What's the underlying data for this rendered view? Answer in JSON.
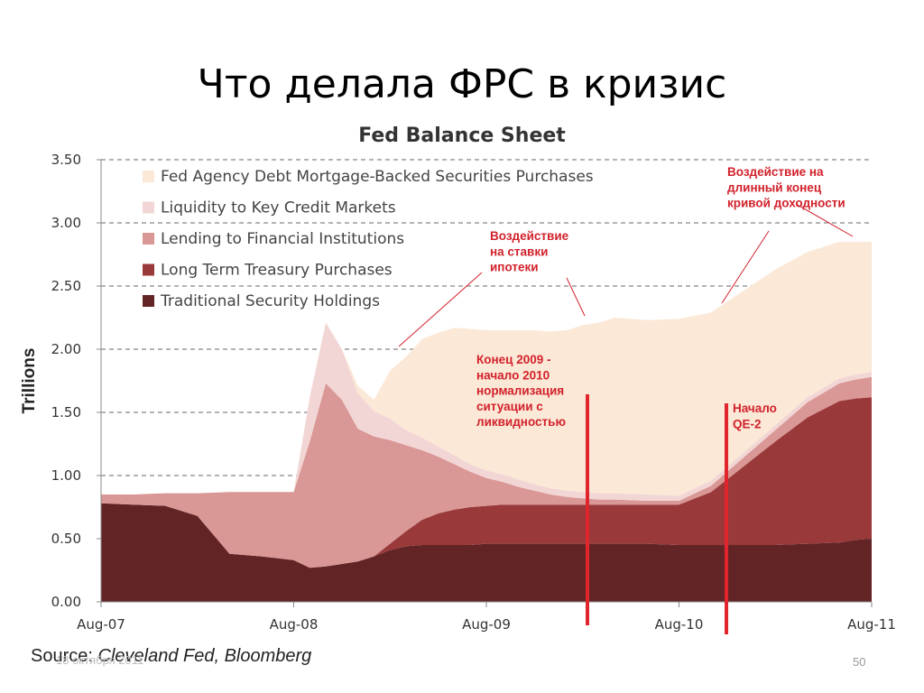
{
  "slide": {
    "title": "Что делала ФРС в кризис",
    "source_label": "Source:",
    "source_text": "Cleveland Fed, Bloomberg",
    "date": "18 октября 2011",
    "page_number": "50"
  },
  "colors": {
    "fed_agency": "#fbe8d6",
    "liquidity": "#f2d6d5",
    "lending": "#d99795",
    "long_term": "#99393a",
    "traditional": "#632426",
    "annotation": "#d2212b",
    "marker_line": "#e0262c"
  },
  "chart_data": {
    "type": "area",
    "stacked": true,
    "title": "Fed Balance Sheet",
    "ylabel": "Trillions",
    "ylim": [
      0,
      3.5
    ],
    "yticks": [
      "0.00",
      "0.50",
      "1.00",
      "1.50",
      "2.00",
      "2.50",
      "3.00",
      "3.50"
    ],
    "xticks": [
      "Aug-07",
      "Aug-08",
      "Aug-09",
      "Aug-10",
      "Aug-11"
    ],
    "grid": "horizontal dashed",
    "legend_position": "top-left",
    "x": [
      "Aug-07",
      "Oct-07",
      "Dec-07",
      "Feb-08",
      "Apr-08",
      "Jun-08",
      "Aug-08",
      "Sep-08",
      "Oct-08",
      "Nov-08",
      "Dec-08",
      "Jan-09",
      "Feb-09",
      "Mar-09",
      "Apr-09",
      "May-09",
      "Jun-09",
      "Jul-09",
      "Aug-09",
      "Sep-09",
      "Oct-09",
      "Nov-09",
      "Dec-09",
      "Jan-10",
      "Feb-10",
      "Mar-10",
      "Apr-10",
      "Jun-10",
      "Aug-10",
      "Oct-10",
      "Dec-10",
      "Feb-11",
      "Apr-11",
      "Jun-11",
      "Jul-11",
      "Aug-11"
    ],
    "series": [
      {
        "name": "Traditional Security Holdings",
        "values": [
          0.78,
          0.77,
          0.76,
          0.68,
          0.38,
          0.36,
          0.33,
          0.27,
          0.28,
          0.3,
          0.32,
          0.36,
          0.41,
          0.44,
          0.45,
          0.45,
          0.45,
          0.45,
          0.46,
          0.46,
          0.46,
          0.46,
          0.46,
          0.46,
          0.46,
          0.46,
          0.46,
          0.46,
          0.45,
          0.45,
          0.45,
          0.45,
          0.46,
          0.47,
          0.49,
          0.5
        ]
      },
      {
        "name": "Long Term Treasury Purchases",
        "values": [
          0,
          0,
          0,
          0,
          0,
          0,
          0,
          0,
          0,
          0,
          0,
          0,
          0.05,
          0.12,
          0.2,
          0.25,
          0.28,
          0.3,
          0.3,
          0.31,
          0.31,
          0.31,
          0.31,
          0.31,
          0.31,
          0.31,
          0.31,
          0.31,
          0.32,
          0.42,
          0.62,
          0.82,
          1.0,
          1.12,
          1.12,
          1.12
        ]
      },
      {
        "name": "Lending to Financial Institutions",
        "values": [
          0.07,
          0.08,
          0.1,
          0.18,
          0.49,
          0.51,
          0.54,
          1.0,
          1.45,
          1.3,
          1.05,
          0.95,
          0.82,
          0.68,
          0.55,
          0.45,
          0.36,
          0.28,
          0.22,
          0.18,
          0.14,
          0.11,
          0.08,
          0.06,
          0.05,
          0.04,
          0.04,
          0.03,
          0.03,
          0.05,
          0.07,
          0.09,
          0.12,
          0.14,
          0.15,
          0.16
        ]
      },
      {
        "name": "Liquidity to Key Credit Markets",
        "values": [
          0,
          0,
          0,
          0,
          0,
          0,
          0,
          0.35,
          0.48,
          0.4,
          0.28,
          0.2,
          0.17,
          0.12,
          0.1,
          0.08,
          0.07,
          0.06,
          0.06,
          0.06,
          0.06,
          0.05,
          0.05,
          0.05,
          0.05,
          0.05,
          0.05,
          0.05,
          0.04,
          0.04,
          0.04,
          0.04,
          0.04,
          0.04,
          0.04,
          0.04
        ]
      },
      {
        "name": "Fed Agency Debt Mortgage-Backed Securities Purchases",
        "values": [
          0,
          0,
          0,
          0,
          0,
          0,
          0,
          0,
          0,
          0,
          0.06,
          0.09,
          0.38,
          0.58,
          0.78,
          0.9,
          1.01,
          1.07,
          1.11,
          1.14,
          1.18,
          1.22,
          1.24,
          1.27,
          1.32,
          1.35,
          1.39,
          1.38,
          1.4,
          1.33,
          1.28,
          1.23,
          1.15,
          1.08,
          1.05,
          1.03
        ]
      }
    ],
    "annotations": [
      {
        "lines": [
          "Воздействие на",
          "длинный конец",
          "кривой доходности"
        ]
      },
      {
        "lines": [
          "Воздействие",
          "на ставки",
          "ипотеки"
        ]
      },
      {
        "lines": [
          "Конец 2009 -",
          "начало 2010",
          "нормализация",
          "ситуации с",
          "ликвидностью"
        ]
      },
      {
        "lines": [
          "Начало",
          "QE-2"
        ]
      }
    ]
  }
}
